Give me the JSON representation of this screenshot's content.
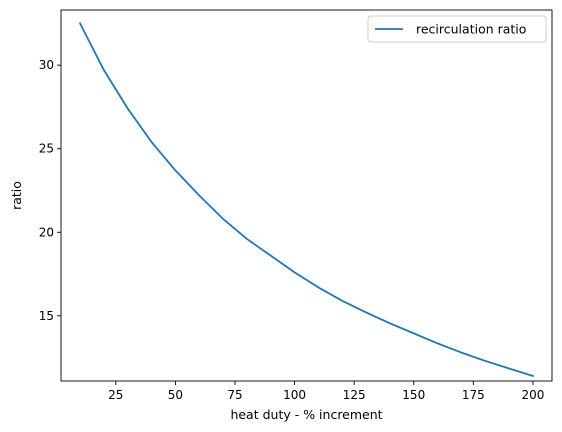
{
  "chart_data": {
    "type": "line",
    "title": "",
    "xlabel": "heat duty - % increment",
    "ylabel": "ratio",
    "xlim": [
      2,
      208
    ],
    "ylim": [
      11.1,
      33.3
    ],
    "x_ticks": [
      25,
      50,
      75,
      100,
      125,
      150,
      175,
      200
    ],
    "y_ticks": [
      15,
      20,
      25,
      30
    ],
    "grid": false,
    "legend": {
      "placement": "top-right"
    },
    "series": [
      {
        "name": "recirculation ratio",
        "color": "#1f77b4",
        "x": [
          10,
          20,
          30,
          40,
          50,
          60,
          70,
          80,
          90,
          100,
          110,
          120,
          130,
          140,
          150,
          160,
          170,
          180,
          190,
          200
        ],
        "y": [
          32.5,
          29.7,
          27.4,
          25.4,
          23.7,
          22.2,
          20.8,
          19.6,
          18.6,
          17.6,
          16.7,
          15.9,
          15.2,
          14.55,
          13.95,
          13.35,
          12.8,
          12.3,
          11.85,
          11.4
        ]
      }
    ]
  }
}
